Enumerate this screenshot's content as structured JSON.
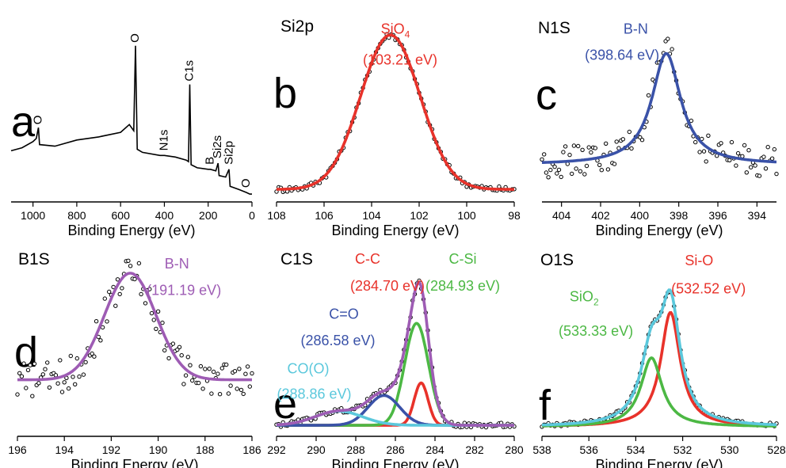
{
  "colors": {
    "red": "#e8322a",
    "blue": "#3a52a8",
    "green": "#4cb844",
    "cyan": "#5bc8dc",
    "purple": "#9e5cb4",
    "black": "#000000"
  },
  "chart_data": [
    {
      "id": "a",
      "type": "line",
      "letter": "a",
      "title": "",
      "xlabel": "Binding Energy (eV)",
      "xlim": [
        1100,
        0
      ],
      "ylim": [
        0,
        1
      ],
      "xticks": [
        1000,
        800,
        600,
        400,
        200,
        0
      ],
      "tick_labels": [
        "1000",
        "800",
        "600",
        "400",
        "200",
        "0"
      ],
      "survey": [
        [
          1100,
          0.29
        ],
        [
          1050,
          0.31
        ],
        [
          1000,
          0.35
        ],
        [
          985,
          0.37
        ],
        [
          975,
          0.44
        ],
        [
          970,
          0.33
        ],
        [
          900,
          0.32
        ],
        [
          800,
          0.36
        ],
        [
          700,
          0.38
        ],
        [
          600,
          0.41
        ],
        [
          560,
          0.46
        ],
        [
          540,
          0.42
        ],
        [
          532,
          0.97
        ],
        [
          524,
          0.3
        ],
        [
          500,
          0.28
        ],
        [
          420,
          0.26
        ],
        [
          400,
          0.26
        ],
        [
          350,
          0.25
        ],
        [
          300,
          0.23
        ],
        [
          290,
          0.22
        ],
        [
          284,
          0.72
        ],
        [
          278,
          0.2
        ],
        [
          250,
          0.18
        ],
        [
          200,
          0.17
        ],
        [
          190,
          0.17
        ],
        [
          165,
          0.16
        ],
        [
          155,
          0.21
        ],
        [
          150,
          0.13
        ],
        [
          120,
          0.12
        ],
        [
          105,
          0.17
        ],
        [
          100,
          0.06
        ],
        [
          60,
          0.04
        ],
        [
          25,
          0.02
        ],
        [
          10,
          0.01
        ],
        [
          0,
          0.01
        ]
      ],
      "peak_labels": [
        {
          "text": "O",
          "x": 532,
          "y": 0.97
        },
        {
          "text": "C1s",
          "x": 284,
          "y": 0.72
        },
        {
          "text": "O",
          "x": 975,
          "y": 0.44
        },
        {
          "text": "N1s",
          "x": 400,
          "y": 0.27
        },
        {
          "text": "B",
          "x": 190,
          "y": 0.18
        },
        {
          "text": "Si2s",
          "x": 155,
          "y": 0.22
        },
        {
          "text": "Si2p",
          "x": 103,
          "y": 0.18
        },
        {
          "text": "O",
          "x": 25,
          "y": 0.03
        }
      ]
    },
    {
      "id": "b",
      "type": "line",
      "letter": "b",
      "title": "Si2p",
      "xlabel": "Binding Energy (eV)",
      "xlim": [
        108,
        98
      ],
      "ylim": [
        0,
        1
      ],
      "xticks": [
        108,
        106,
        104,
        102,
        100,
        98
      ],
      "tick_labels": [
        "108",
        "106",
        "104",
        "102",
        "100",
        "98"
      ],
      "background": 0.04,
      "series": [
        {
          "name": "SiO4 (103.21 eV)",
          "color": "red",
          "center": 103.21,
          "width": 1.25,
          "height": 1.0,
          "shape": "gauss"
        }
      ],
      "annotations": [
        {
          "text": "SiO",
          "sub": "4",
          "color": "red",
          "x": 103.0,
          "y": 1.05
        },
        {
          "text": "(103.21 eV)",
          "color": "red",
          "x": 102.8,
          "y": 0.85
        }
      ],
      "noise": 0.02
    },
    {
      "id": "c",
      "type": "line",
      "letter": "c",
      "title": "N1S",
      "xlabel": "Binding Energy (eV)",
      "xlim": [
        405,
        393
      ],
      "ylim": [
        0,
        1
      ],
      "xticks": [
        404,
        402,
        400,
        398,
        396,
        394
      ],
      "tick_labels": [
        "404",
        "402",
        "400",
        "398",
        "396",
        "394"
      ],
      "background": 0.2,
      "series": [
        {
          "name": "B-N (398.64 eV)",
          "color": "blue",
          "center": 398.64,
          "width": 0.9,
          "height": 0.72,
          "shape": "lorentz"
        }
      ],
      "annotations": [
        {
          "text": "B-N",
          "color": "blue",
          "x": 400.2,
          "y": 1.05
        },
        {
          "text": "(398.64 eV)",
          "color": "blue",
          "x": 400.9,
          "y": 0.88
        }
      ],
      "noise": 0.1
    },
    {
      "id": "d",
      "type": "line",
      "letter": "d",
      "title": "B1S",
      "xlabel": "Binding Energy (eV)",
      "xlim": [
        196,
        186
      ],
      "ylim": [
        0,
        1
      ],
      "xticks": [
        196,
        194,
        192,
        190,
        188,
        186
      ],
      "tick_labels": [
        "196",
        "194",
        "192",
        "190",
        "188",
        "186"
      ],
      "background": 0.32,
      "series": [
        {
          "name": "B-N (191.19 eV)",
          "color": "purple",
          "center": 191.19,
          "width": 1.1,
          "height": 0.68,
          "shape": "gauss"
        }
      ],
      "annotations": [
        {
          "text": "B-N",
          "color": "purple",
          "x": 189.2,
          "y": 1.03
        },
        {
          "text": "(191.19 eV)",
          "color": "purple",
          "x": 188.9,
          "y": 0.86
        }
      ],
      "noise": 0.11
    },
    {
      "id": "e",
      "type": "line",
      "letter": "e",
      "title": "C1S",
      "xlabel": "Binding Energy (eV)",
      "xlim": [
        292,
        280
      ],
      "ylim": [
        0,
        1
      ],
      "xticks": [
        292,
        290,
        288,
        286,
        284,
        282,
        280
      ],
      "tick_labels": [
        "292",
        "290",
        "288",
        "286",
        "284",
        "282",
        "280"
      ],
      "background": 0.03,
      "envelope_color": "purple",
      "series": [
        {
          "name": "C-C (284.70 eV)",
          "color": "red",
          "center": 284.7,
          "width": 0.35,
          "height": 0.27,
          "shape": "gauss"
        },
        {
          "name": "C-Si (284.93 eV)",
          "color": "green",
          "center": 284.93,
          "width": 0.6,
          "height": 0.65,
          "shape": "gauss"
        },
        {
          "name": "C=O (286.58 eV)",
          "color": "blue",
          "center": 286.58,
          "width": 0.8,
          "height": 0.19,
          "shape": "gauss"
        },
        {
          "name": "CO(O) (288.86 eV)",
          "color": "cyan",
          "center": 288.86,
          "width": 1.2,
          "height": 0.09,
          "shape": "gauss"
        }
      ],
      "annotations": [
        {
          "text": "C-C",
          "color": "red",
          "x": 287.4,
          "y": 1.06
        },
        {
          "text": "(284.70 eV)",
          "color": "red",
          "x": 286.4,
          "y": 0.89
        },
        {
          "text": "C-Si",
          "color": "green",
          "x": 282.6,
          "y": 1.06
        },
        {
          "text": "(284.93 eV)",
          "color": "green",
          "x": 282.6,
          "y": 0.89
        },
        {
          "text": "C=O",
          "color": "blue",
          "x": 288.6,
          "y": 0.71
        },
        {
          "text": "(286.58 eV)",
          "color": "blue",
          "x": 288.9,
          "y": 0.54
        },
        {
          "text": "CO(O)",
          "color": "cyan",
          "x": 290.4,
          "y": 0.36
        },
        {
          "text": "(288.86 eV)",
          "color": "cyan",
          "x": 290.1,
          "y": 0.2
        }
      ],
      "noise": 0.015
    },
    {
      "id": "f",
      "type": "line",
      "letter": "f",
      "title": "O1S",
      "xlabel": "Binding Energy (eV)",
      "xlim": [
        538,
        528
      ],
      "ylim": [
        0,
        1
      ],
      "xticks": [
        538,
        536,
        534,
        532,
        530,
        528
      ],
      "tick_labels": [
        "538",
        "536",
        "534",
        "532",
        "530",
        "528"
      ],
      "background": 0.02,
      "envelope_color": "cyan",
      "series": [
        {
          "name": "Si-O (532.52 eV)",
          "color": "red",
          "center": 532.52,
          "width": 0.5,
          "height": 0.73,
          "shape": "lorentz"
        },
        {
          "name": "SiO2 (533.33 eV)",
          "color": "green",
          "center": 533.33,
          "width": 0.55,
          "height": 0.44,
          "shape": "lorentz"
        }
      ],
      "annotations": [
        {
          "text": "Si-O",
          "color": "red",
          "x": 531.3,
          "y": 1.05
        },
        {
          "text": "(532.52 eV)",
          "color": "red",
          "x": 530.9,
          "y": 0.87
        },
        {
          "text": "SiO",
          "sub": "2",
          "color": "green",
          "x": 536.2,
          "y": 0.82
        },
        {
          "text": "(533.33 eV)",
          "color": "green",
          "x": 535.7,
          "y": 0.6
        }
      ],
      "noise": 0.012
    }
  ]
}
